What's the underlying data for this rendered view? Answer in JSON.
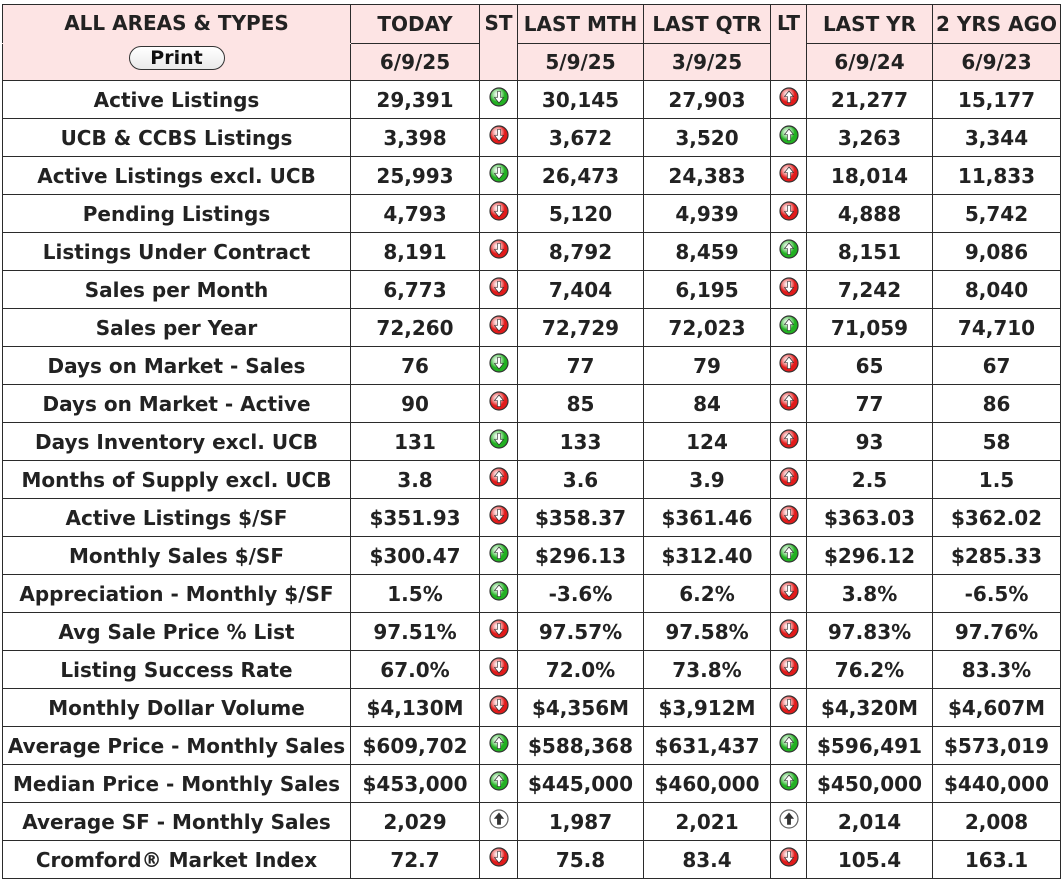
{
  "header": {
    "area_label": "ALL AREAS & TYPES",
    "print_label": "Print",
    "columns": [
      {
        "title": "TODAY",
        "date": "6/9/25"
      },
      {
        "title": "ST",
        "date": ""
      },
      {
        "title": "LAST MTH",
        "date": "5/9/25"
      },
      {
        "title": "LAST QTR",
        "date": "3/9/25"
      },
      {
        "title": "LT",
        "date": ""
      },
      {
        "title": "LAST YR",
        "date": "6/9/24"
      },
      {
        "title": "2 YRS AGO",
        "date": "6/9/23"
      }
    ]
  },
  "rows": [
    {
      "label": "Active Listings",
      "today": "29,391",
      "st": "down-green",
      "last_mth": "30,145",
      "last_qtr": "27,903",
      "lt": "up-red",
      "last_yr": "21,277",
      "two_yrs": "15,177"
    },
    {
      "label": "UCB & CCBS Listings",
      "today": "3,398",
      "st": "down-red",
      "last_mth": "3,672",
      "last_qtr": "3,520",
      "lt": "up-green",
      "last_yr": "3,263",
      "two_yrs": "3,344"
    },
    {
      "label": "Active Listings excl. UCB",
      "today": "25,993",
      "st": "down-green",
      "last_mth": "26,473",
      "last_qtr": "24,383",
      "lt": "up-red",
      "last_yr": "18,014",
      "two_yrs": "11,833"
    },
    {
      "label": "Pending Listings",
      "today": "4,793",
      "st": "down-red",
      "last_mth": "5,120",
      "last_qtr": "4,939",
      "lt": "down-red",
      "last_yr": "4,888",
      "two_yrs": "5,742"
    },
    {
      "label": "Listings Under Contract",
      "today": "8,191",
      "st": "down-red",
      "last_mth": "8,792",
      "last_qtr": "8,459",
      "lt": "up-green",
      "last_yr": "8,151",
      "two_yrs": "9,086"
    },
    {
      "label": "Sales per Month",
      "today": "6,773",
      "st": "down-red",
      "last_mth": "7,404",
      "last_qtr": "6,195",
      "lt": "down-red",
      "last_yr": "7,242",
      "two_yrs": "8,040"
    },
    {
      "label": "Sales per Year",
      "today": "72,260",
      "st": "down-red",
      "last_mth": "72,729",
      "last_qtr": "72,023",
      "lt": "up-green",
      "last_yr": "71,059",
      "two_yrs": "74,710"
    },
    {
      "label": "Days on Market - Sales",
      "today": "76",
      "st": "down-green",
      "last_mth": "77",
      "last_qtr": "79",
      "lt": "up-red",
      "last_yr": "65",
      "two_yrs": "67"
    },
    {
      "label": "Days on Market - Active",
      "today": "90",
      "st": "up-red",
      "last_mth": "85",
      "last_qtr": "84",
      "lt": "up-red",
      "last_yr": "77",
      "two_yrs": "86"
    },
    {
      "label": "Days Inventory excl. UCB",
      "today": "131",
      "st": "down-green",
      "last_mth": "133",
      "last_qtr": "124",
      "lt": "up-red",
      "last_yr": "93",
      "two_yrs": "58"
    },
    {
      "label": "Months of Supply excl. UCB",
      "today": "3.8",
      "st": "up-red",
      "last_mth": "3.6",
      "last_qtr": "3.9",
      "lt": "up-red",
      "last_yr": "2.5",
      "two_yrs": "1.5"
    },
    {
      "label": "Active Listings $/SF",
      "today": "$351.93",
      "st": "down-red",
      "last_mth": "$358.37",
      "last_qtr": "$361.46",
      "lt": "down-red",
      "last_yr": "$363.03",
      "two_yrs": "$362.02"
    },
    {
      "label": "Monthly Sales $/SF",
      "today": "$300.47",
      "st": "up-green",
      "last_mth": "$296.13",
      "last_qtr": "$312.40",
      "lt": "up-green",
      "last_yr": "$296.12",
      "two_yrs": "$285.33"
    },
    {
      "label": "Appreciation - Monthly $/SF",
      "today": "1.5%",
      "st": "up-green",
      "last_mth": "-3.6%",
      "last_qtr": "6.2%",
      "lt": "down-red",
      "last_yr": "3.8%",
      "two_yrs": "-6.5%"
    },
    {
      "label": "Avg Sale Price % List",
      "today": "97.51%",
      "st": "down-red",
      "last_mth": "97.57%",
      "last_qtr": "97.58%",
      "lt": "down-red",
      "last_yr": "97.83%",
      "two_yrs": "97.76%"
    },
    {
      "label": "Listing Success Rate",
      "today": "67.0%",
      "st": "down-red",
      "last_mth": "72.0%",
      "last_qtr": "73.8%",
      "lt": "down-red",
      "last_yr": "76.2%",
      "two_yrs": "83.3%"
    },
    {
      "label": "Monthly Dollar Volume",
      "today": "$4,130M",
      "st": "down-red",
      "last_mth": "$4,356M",
      "last_qtr": "$3,912M",
      "lt": "down-red",
      "last_yr": "$4,320M",
      "two_yrs": "$4,607M"
    },
    {
      "label": "Average Price - Monthly Sales",
      "today": "$609,702",
      "st": "up-green",
      "last_mth": "$588,368",
      "last_qtr": "$631,437",
      "lt": "up-green",
      "last_yr": "$596,491",
      "two_yrs": "$573,019"
    },
    {
      "label": "Median Price - Monthly Sales",
      "today": "$453,000",
      "st": "up-green",
      "last_mth": "$445,000",
      "last_qtr": "$460,000",
      "lt": "up-green",
      "last_yr": "$450,000",
      "two_yrs": "$440,000"
    },
    {
      "label": "Average SF - Monthly Sales",
      "today": "2,029",
      "st": "up-white",
      "last_mth": "1,987",
      "last_qtr": "2,021",
      "lt": "up-white",
      "last_yr": "2,014",
      "two_yrs": "2,008"
    },
    {
      "label": "Cromford® Market Index",
      "today": "72.7",
      "st": "down-red",
      "last_mth": "75.8",
      "last_qtr": "83.4",
      "lt": "down-red",
      "last_yr": "105.4",
      "two_yrs": "163.1"
    }
  ],
  "colors": {
    "header_bg": "#fde4e4",
    "green": "#22b022",
    "red": "#e11b1b",
    "white": "#ffffff",
    "border": "#2b2b2b"
  }
}
